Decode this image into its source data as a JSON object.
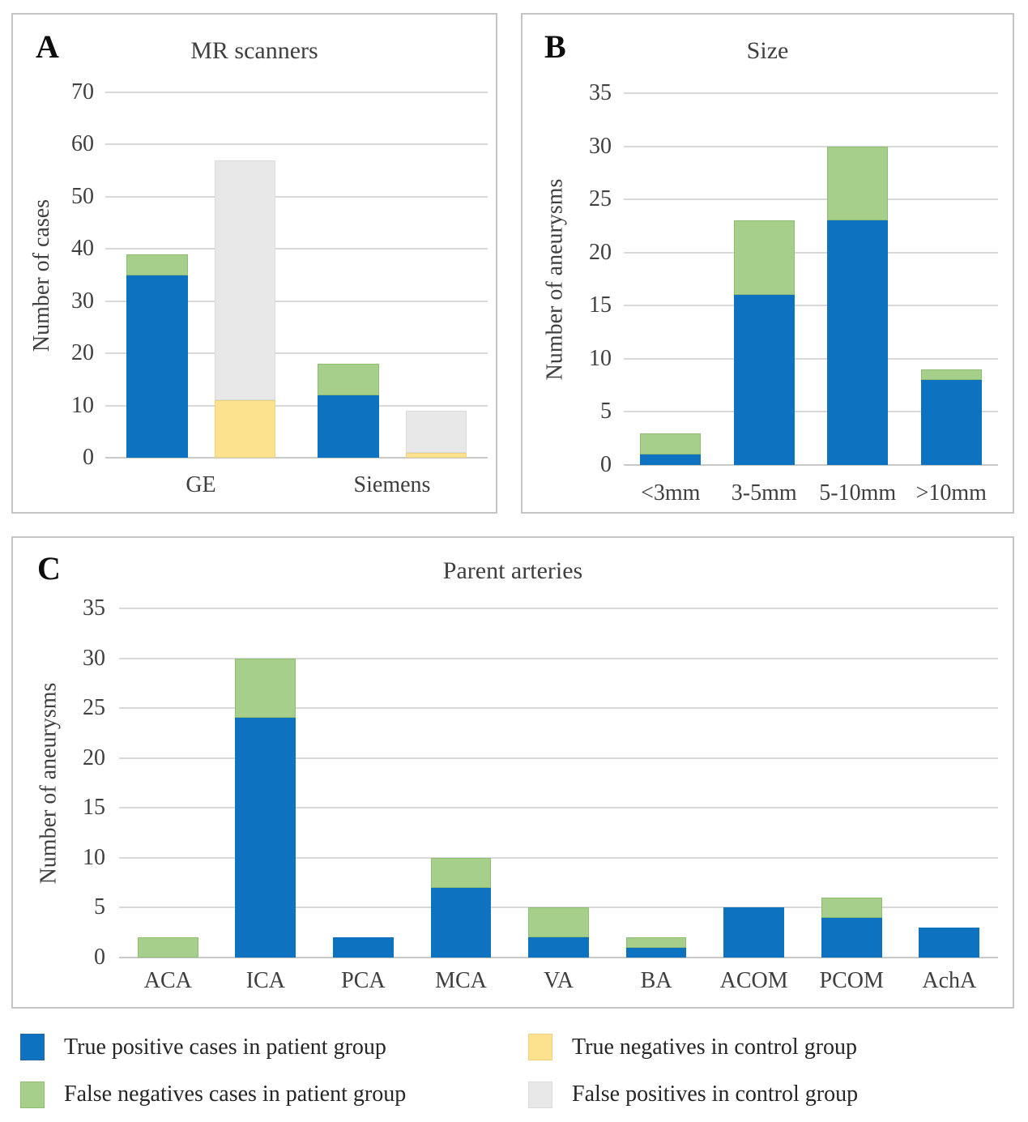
{
  "colors": {
    "blue": "#0d72c0",
    "green": "#a6cf8c",
    "yellow": "#fce28e",
    "gray": "#e9e8e8"
  },
  "swatch_borders": {
    "blue": "#2a65a0",
    "green": "#8fbe72",
    "yellow": "#eed17f",
    "gray": "#dcdbdb"
  },
  "chart_data": [
    {
      "letter": "A",
      "title": "MR scanners",
      "type": "bar",
      "stacked": true,
      "ylabel": "Number of cases",
      "ylim": [
        0,
        70
      ],
      "ytick_step": 10,
      "grid": true,
      "categories": [
        "GE",
        "Siemens"
      ],
      "bar_width_pct": 32,
      "series": [
        {
          "name": "True positive cases in patient group",
          "color_key": "blue",
          "bar": 0,
          "values": [
            35,
            12
          ]
        },
        {
          "name": "False negatives cases in patient group",
          "color_key": "green",
          "bar": 0,
          "values": [
            4,
            6
          ]
        },
        {
          "name": "True negatives in control group",
          "color_key": "yellow",
          "bar": 1,
          "values": [
            11,
            1
          ]
        },
        {
          "name": "False positives in control group",
          "color_key": "gray",
          "bar": 1,
          "values": [
            46,
            8
          ]
        }
      ],
      "bar_totals_note": {
        "GE_patient": 39,
        "GE_control": 57,
        "Siemens_patient": 18,
        "Siemens_control": 9
      }
    },
    {
      "letter": "B",
      "title": "Size",
      "type": "bar",
      "stacked": true,
      "ylabel": "Number of aneurysms",
      "ylim": [
        0,
        35
      ],
      "ytick_step": 5,
      "grid": true,
      "categories": [
        "<3mm",
        "3-5mm",
        "5-10mm",
        ">10mm"
      ],
      "bar_width_pct": 65,
      "series": [
        {
          "name": "True positive cases in patient group",
          "color_key": "blue",
          "bar": 0,
          "values": [
            1,
            16,
            23,
            8
          ]
        },
        {
          "name": "False negatives cases in patient group",
          "color_key": "green",
          "bar": 0,
          "values": [
            2,
            7,
            7,
            1
          ]
        }
      ],
      "bar_totals_note": {
        "<3mm": 3,
        "3-5mm": 23,
        "5-10mm": 30,
        ">10mm": 9
      }
    },
    {
      "letter": "C",
      "title": "Parent arteries",
      "type": "bar",
      "stacked": true,
      "ylabel": "Number of aneurysms",
      "ylim": [
        0,
        35
      ],
      "ytick_step": 5,
      "grid": true,
      "categories": [
        "ACA",
        "ICA",
        "PCA",
        "MCA",
        "VA",
        "BA",
        "ACOM",
        "PCOM",
        "AchA"
      ],
      "bar_width_pct": 62,
      "series": [
        {
          "name": "True positive cases in patient group",
          "color_key": "blue",
          "bar": 0,
          "values": [
            0,
            24,
            2,
            7,
            2,
            1,
            5,
            4,
            3
          ]
        },
        {
          "name": "False negatives cases in patient group",
          "color_key": "green",
          "bar": 0,
          "values": [
            2,
            6,
            0,
            3,
            3,
            1,
            0,
            2,
            0
          ]
        }
      ],
      "bar_totals_note": {
        "ACA": 2,
        "ICA": 30,
        "PCA": 2,
        "MCA": 10,
        "VA": 5,
        "BA": 2,
        "ACOM": 5,
        "PCOM": 6,
        "AchA": 3
      }
    }
  ],
  "legend": {
    "items": [
      {
        "label": "True positive cases in patient group",
        "color_key": "blue"
      },
      {
        "label": "False negatives cases in patient group",
        "color_key": "green"
      },
      {
        "label": "True negatives in control group",
        "color_key": "yellow"
      },
      {
        "label": "False positives in control group",
        "color_key": "gray"
      }
    ]
  }
}
